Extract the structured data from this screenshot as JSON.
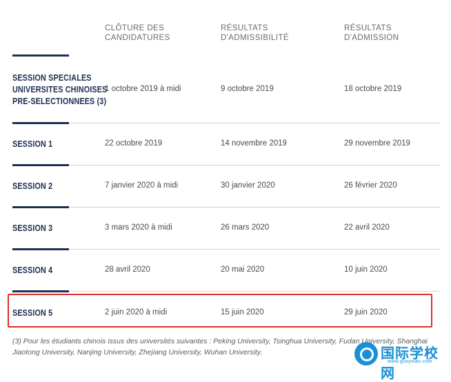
{
  "header": {
    "col1": [
      "CLÔTURE DES",
      "CANDIDATURES"
    ],
    "col2": [
      "RÉSULTATS",
      "D'ADMISSIBILITÉ"
    ],
    "col3": [
      "RÉSULTATS",
      "D'ADMISSION"
    ]
  },
  "rows": [
    {
      "session": [
        "SESSION SPECIALES",
        "UNIVERSITES CHINOISES",
        "PRE-SELECTIONNEES (3)"
      ],
      "cloture": "1 octobre 2019 à midi",
      "admissibilite": "9 octobre 2019",
      "admission": "18 octobre 2019"
    },
    {
      "session": [
        "SESSION 1"
      ],
      "cloture": "22 octobre 2019",
      "admissibilite": "14 novembre 2019",
      "admission": "29 novembre 2019"
    },
    {
      "session": [
        "SESSION 2"
      ],
      "cloture": "7 janvier 2020 à midi",
      "admissibilite": "30 janvier 2020",
      "admission": "26 février 2020"
    },
    {
      "session": [
        "SESSION 3"
      ],
      "cloture": "3 mars 2020 à midi",
      "admissibilite": "26 mars 2020",
      "admission": "22 avril 2020"
    },
    {
      "session": [
        "SESSION 4"
      ],
      "cloture": "28 avril 2020",
      "admissibilite": "20 mai 2020",
      "admission": "10 juin 2020"
    },
    {
      "session": [
        "SESSION 5"
      ],
      "cloture": "2 juin 2020 à midi",
      "admissibilite": "15 juin 2020",
      "admission": "29 juin 2020"
    }
  ],
  "footnote": "(3) Pour les étudiants chinois issus des universités suivantes : Peking University, Tsinghua University, Fudan University, Shanghai Jiaotong University, Nanjing University, Zhejiang University, Wuhan University.",
  "watermark": {
    "title": "国际学校网",
    "url": "www.guojixiao.com",
    "color": "#1b8fd6"
  },
  "colors": {
    "session_label": "#1c2f52",
    "highlight_border": "#e02b2b"
  }
}
